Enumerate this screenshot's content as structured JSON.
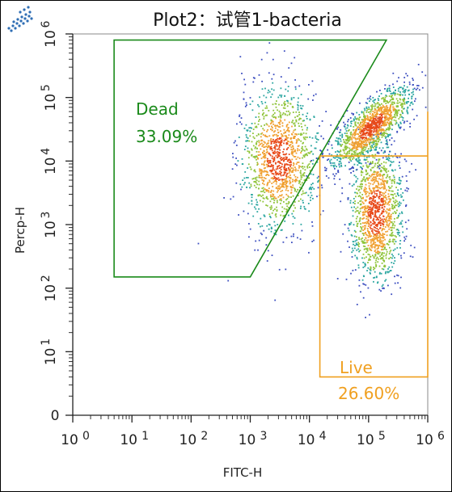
{
  "title": "Plot2：试管1-bacteria",
  "chart_data": {
    "type": "scatter",
    "xlabel": "FITC-H",
    "ylabel": "Percp-H",
    "xscale": "log",
    "yscale": "log",
    "xlim": [
      1,
      1000000
    ],
    "ylim": [
      1,
      1000000
    ],
    "x_ticks": [
      {
        "base": "10",
        "exp": "0"
      },
      {
        "base": "10",
        "exp": "1"
      },
      {
        "base": "10",
        "exp": "2"
      },
      {
        "base": "10",
        "exp": "3"
      },
      {
        "base": "10",
        "exp": "4"
      },
      {
        "base": "10",
        "exp": "5"
      },
      {
        "base": "10",
        "exp": "6"
      }
    ],
    "y_ticks": [
      {
        "base": "0",
        "exp": ""
      },
      {
        "base": "10",
        "exp": "1"
      },
      {
        "base": "10",
        "exp": "2"
      },
      {
        "base": "10",
        "exp": "3"
      },
      {
        "base": "10",
        "exp": "4"
      },
      {
        "base": "10",
        "exp": "5"
      },
      {
        "base": "10",
        "exp": "6"
      }
    ],
    "populations": [
      {
        "x": 3000,
        "y": 12000,
        "color": "#e8502a"
      },
      {
        "x": 150000,
        "y": 1500,
        "color": "#e8a02a"
      },
      {
        "x": 200000,
        "y": 50000,
        "color": "#e85020"
      }
    ],
    "gates": [
      {
        "name": "Dead",
        "label": "Dead",
        "value": "33.09%",
        "color": "#1a8a1a",
        "vertices": [
          [
            5,
            800000
          ],
          [
            200000,
            800000
          ],
          [
            1000,
            150
          ],
          [
            5,
            150
          ]
        ]
      },
      {
        "name": "Live",
        "label": "Live",
        "value": "26.60%",
        "color": "#f0a020",
        "vertices": [
          [
            15000,
            12000
          ],
          [
            1000000,
            12000
          ],
          [
            1000000,
            60000
          ],
          [
            1000000,
            4
          ],
          [
            15000,
            4
          ]
        ]
      }
    ]
  }
}
